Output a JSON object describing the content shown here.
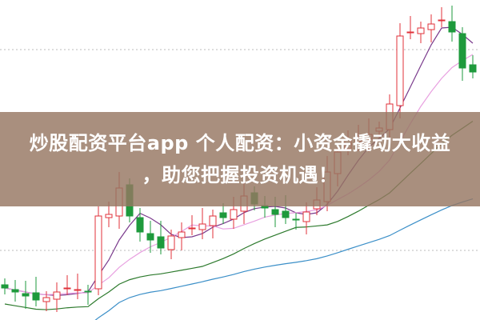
{
  "headline": {
    "line1": "炒股配资平台app 个人配资：小资金撬动大收益",
    "line2": "，助您把握投资机遇！"
  },
  "colors": {
    "up": "#e0323a",
    "down": "#1e9a3c",
    "ma5": "#7a3a8c",
    "ma10": "#e8a0e0",
    "ma20": "#2d7a2d",
    "ma60": "#3b8fc8",
    "grid": "#bbbbbb"
  },
  "chart_data": {
    "type": "candlestick",
    "closes": [
      10,
      8.75,
      7.5,
      6.25,
      7,
      8.75,
      10,
      9.5,
      8.75,
      32.5,
      33,
      41.25,
      32.5,
      27.5,
      25,
      22.5,
      26.25,
      27.5,
      28.75,
      30,
      32.5,
      32,
      34.5,
      38.75,
      36.25,
      35,
      33,
      32,
      31.25,
      33.75,
      37.5,
      46.25,
      52.5,
      56.25,
      57,
      58,
      60,
      67.5,
      88.75,
      90,
      91.25,
      92.5,
      93.75,
      90,
      78.75,
      77.5
    ],
    "moving_averages": [
      5,
      10,
      20,
      60
    ],
    "grid": "dotted horizontal"
  }
}
